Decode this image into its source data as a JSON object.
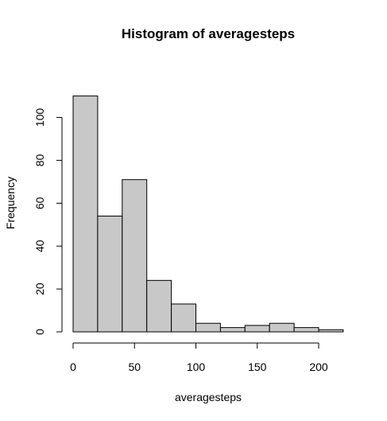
{
  "chart_data": {
    "type": "bar",
    "title": "Histogram of averagesteps",
    "xlabel": "averagesteps",
    "ylabel": "Frequency",
    "bins": [
      {
        "from": 0,
        "to": 20,
        "count": 110
      },
      {
        "from": 20,
        "to": 40,
        "count": 54
      },
      {
        "from": 40,
        "to": 60,
        "count": 71
      },
      {
        "from": 60,
        "to": 80,
        "count": 24
      },
      {
        "from": 80,
        "to": 100,
        "count": 13
      },
      {
        "from": 100,
        "to": 120,
        "count": 4
      },
      {
        "from": 120,
        "to": 140,
        "count": 2
      },
      {
        "from": 140,
        "to": 160,
        "count": 3
      },
      {
        "from": 160,
        "to": 180,
        "count": 4
      },
      {
        "from": 180,
        "to": 200,
        "count": 2
      },
      {
        "from": 200,
        "to": 220,
        "count": 1
      }
    ],
    "xlim": [
      0,
      220
    ],
    "ylim": [
      0,
      110
    ],
    "xticks": [
      0,
      50,
      100,
      150,
      200
    ],
    "yticks": [
      0,
      20,
      40,
      60,
      80,
      100
    ],
    "grid": false,
    "bar_color": "#c8c8c8",
    "edge_color": "#000000"
  }
}
